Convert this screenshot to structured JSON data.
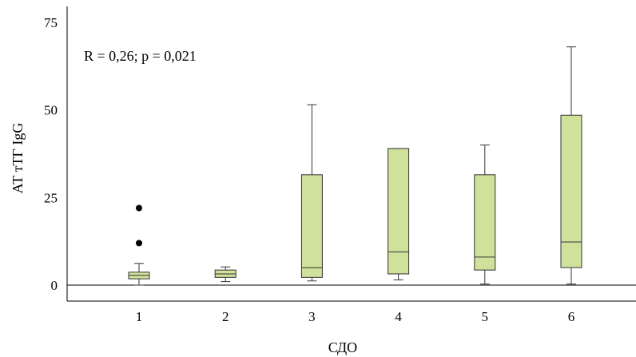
{
  "chart_data": {
    "type": "box",
    "annotation": "R = 0,26; p = 0,021",
    "xlabel": "СДО",
    "ylabel": "АТ тТГ IgG",
    "categories": [
      "1",
      "2",
      "3",
      "4",
      "5",
      "6"
    ],
    "y_ticks": [
      "0",
      "25",
      "50",
      "75"
    ],
    "ylim": [
      -5,
      79
    ],
    "boxes": [
      {
        "category": "1",
        "whisker_low": 0,
        "q1": 1.8,
        "median": 2.8,
        "q3": 3.7,
        "whisker_high": 6.2,
        "outliers": [
          12,
          22
        ]
      },
      {
        "category": "2",
        "whisker_low": 1.0,
        "q1": 2.2,
        "median": 3.2,
        "q3": 4.3,
        "whisker_high": 5.2,
        "outliers": []
      },
      {
        "category": "3",
        "whisker_low": 1.2,
        "q1": 2.2,
        "median": 5.0,
        "q3": 31.5,
        "whisker_high": 51.5,
        "outliers": []
      },
      {
        "category": "4",
        "whisker_low": 1.5,
        "q1": 3.2,
        "median": 9.5,
        "q3": 39.0,
        "whisker_high": 39.0,
        "outliers": []
      },
      {
        "category": "5",
        "whisker_low": 0.3,
        "q1": 4.3,
        "median": 8.0,
        "q3": 31.5,
        "whisker_high": 40.0,
        "outliers": []
      },
      {
        "category": "6",
        "whisker_low": 0.3,
        "q1": 5.0,
        "median": 12.3,
        "q3": 48.5,
        "whisker_high": 68.0,
        "outliers": []
      }
    ],
    "box_fill": "#cfe19b",
    "box_stroke": "#333333",
    "grid": false
  }
}
